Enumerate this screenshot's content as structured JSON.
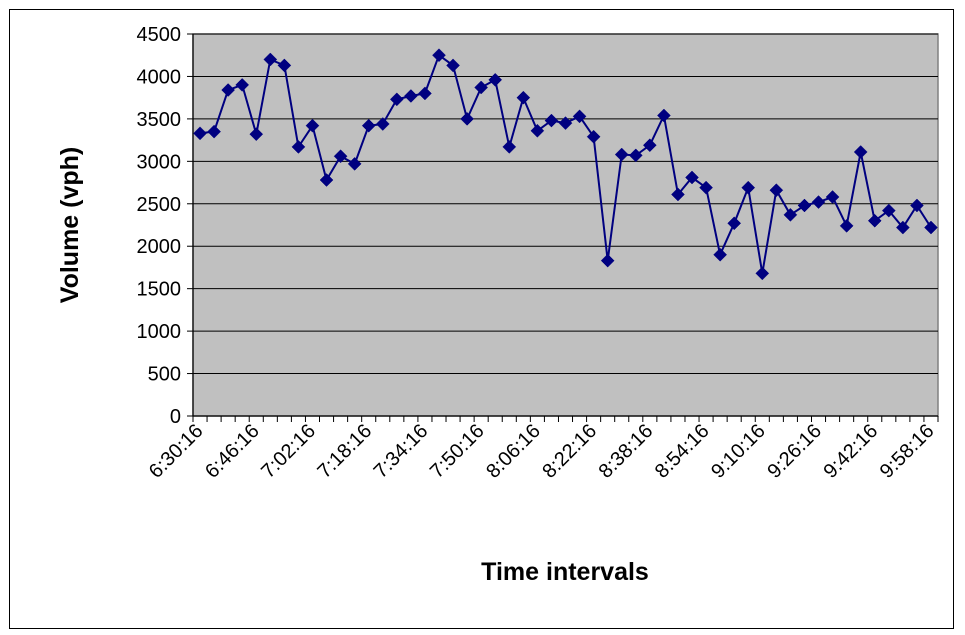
{
  "chart_data": {
    "type": "line",
    "title": "",
    "xlabel": "Time intervals",
    "ylabel": "Volume (vph)",
    "ylim": [
      0,
      4500
    ],
    "y_ticks": [
      "0",
      "500",
      "1000",
      "1500",
      "2000",
      "2500",
      "3000",
      "3500",
      "4000",
      "4500"
    ],
    "x_tick_labels": [
      "6:30:16",
      "6:46:16",
      "7:02:16",
      "7:18:16",
      "7:34:16",
      "7:50:16",
      "8:06:16",
      "8:22:16",
      "8:38:16",
      "8:54:16",
      "9:10:16",
      "9:26:16",
      "9:42:16",
      "9:58:16"
    ],
    "x_tick_every": 4,
    "grid": "horizontal",
    "legend": "none",
    "plot_background": "#c0c0c0",
    "series": [
      {
        "color": "#000080",
        "marker": "diamond",
        "values": [
          3330,
          3350,
          3840,
          3900,
          3320,
          4200,
          4130,
          3170,
          3420,
          2780,
          3060,
          2970,
          3420,
          3440,
          3730,
          3770,
          3800,
          4250,
          4130,
          3500,
          3870,
          3960,
          3170,
          3750,
          3360,
          3480,
          3450,
          3530,
          3290,
          1830,
          3080,
          3070,
          3190,
          3540,
          2610,
          2810,
          2690,
          1900,
          2270,
          2690,
          1680,
          2660,
          2370,
          2480,
          2520,
          2580,
          2240,
          3110,
          2300,
          2420,
          2220,
          2480,
          2220
        ]
      }
    ]
  }
}
